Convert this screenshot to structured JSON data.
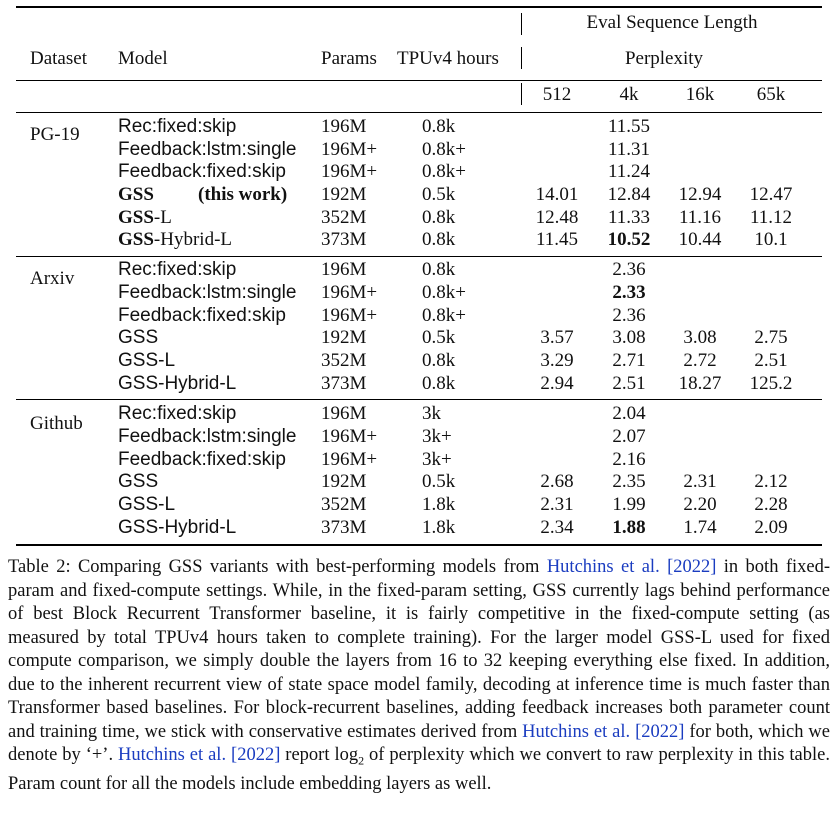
{
  "header": {
    "eval_group": "Eval Sequence Length",
    "dataset": "Dataset",
    "model": "Model",
    "params": "Params",
    "tpu_hours": "TPUv4 hours",
    "perplexity": "Perplexity",
    "lengths": [
      "512",
      "4k",
      "16k",
      "65k"
    ]
  },
  "sections": [
    {
      "dataset": "PG-19",
      "rows": [
        {
          "model": "Rec:fixed:skip",
          "params": "196M",
          "hours": "0.8k",
          "v512": "",
          "v4k": "11.55",
          "v16k": "",
          "v65k": ""
        },
        {
          "model": "Feedback:lstm:single",
          "params": "196M+",
          "hours": "0.8k+",
          "v512": "",
          "v4k": "11.31",
          "v16k": "",
          "v65k": ""
        },
        {
          "model": "Feedback:fixed:skip",
          "params": "196M+",
          "hours": "0.8k+",
          "v512": "",
          "v4k": "11.24",
          "v16k": "",
          "v65k": ""
        },
        {
          "model": "GSS",
          "model_note": "(this work)",
          "params": "192M",
          "hours": "0.5k",
          "v512": "14.01",
          "v4k": "12.84",
          "v16k": "12.94",
          "v65k": "12.47"
        },
        {
          "model": "GSS",
          "model_suffix": "-L",
          "params": "352M",
          "hours": "0.8k",
          "v512": "12.48",
          "v4k": "11.33",
          "v16k": "11.16",
          "v65k": "11.12"
        },
        {
          "model": "GSS",
          "model_suffix": "-Hybrid-L",
          "params": "373M",
          "hours": "0.8k",
          "v512": "11.45",
          "v4k": "10.52",
          "v16k": "10.44",
          "v65k": "10.1"
        }
      ]
    },
    {
      "dataset": "Arxiv",
      "rows": [
        {
          "model": "Rec:fixed:skip",
          "params": "196M",
          "hours": "0.8k",
          "v512": "",
          "v4k": "2.36",
          "v16k": "",
          "v65k": ""
        },
        {
          "model": "Feedback:lstm:single",
          "params": "196M+",
          "hours": "0.8k+",
          "v512": "",
          "v4k": "2.33",
          "v16k": "",
          "v65k": ""
        },
        {
          "model": "Feedback:fixed:skip",
          "params": "196M+",
          "hours": "0.8k+",
          "v512": "",
          "v4k": "2.36",
          "v16k": "",
          "v65k": ""
        },
        {
          "model": "GSS",
          "params": "192M",
          "hours": "0.5k",
          "v512": "3.57",
          "v4k": "3.08",
          "v16k": "3.08",
          "v65k": "2.75"
        },
        {
          "model": "GSS-L",
          "params": "352M",
          "hours": "0.8k",
          "v512": "3.29",
          "v4k": "2.71",
          "v16k": "2.72",
          "v65k": "2.51"
        },
        {
          "model": "GSS-Hybrid-L",
          "params": "373M",
          "hours": "0.8k",
          "v512": "2.94",
          "v4k": "2.51",
          "v16k": "18.27",
          "v65k": "125.2"
        }
      ]
    },
    {
      "dataset": "Github",
      "rows": [
        {
          "model": "Rec:fixed:skip",
          "params": "196M",
          "hours": "3k",
          "v512": "",
          "v4k": "2.04",
          "v16k": "",
          "v65k": ""
        },
        {
          "model": "Feedback:lstm:single",
          "params": "196M+",
          "hours": "3k+",
          "v512": "",
          "v4k": "2.07",
          "v16k": "",
          "v65k": ""
        },
        {
          "model": "Feedback:fixed:skip",
          "params": "196M+",
          "hours": "3k+",
          "v512": "",
          "v4k": "2.16",
          "v16k": "",
          "v65k": ""
        },
        {
          "model": "GSS",
          "params": "192M",
          "hours": "0.5k",
          "v512": "2.68",
          "v4k": "2.35",
          "v16k": "2.31",
          "v65k": "2.12"
        },
        {
          "model": "GSS-L",
          "params": "352M",
          "hours": "1.8k",
          "v512": "2.31",
          "v4k": "1.99",
          "v16k": "2.20",
          "v65k": "2.28"
        },
        {
          "model": "GSS-Hybrid-L",
          "params": "373M",
          "hours": "1.8k",
          "v512": "2.34",
          "v4k": "1.88",
          "v16k": "1.74",
          "v65k": "2.09"
        }
      ]
    }
  ],
  "bold_cells": [
    "PG-19 GSS-Hybrid-L 4k: 10.52",
    "Arxiv Feedback:lstm:single 4k: 2.33",
    "Github GSS-Hybrid-L 4k: 1.88"
  ],
  "caption": {
    "t1": "Table 2: Comparing GSS variants with best-performing models from ",
    "cite_name": "Hutchins et al.",
    "cite_year": "2022",
    "t2": " in both fixed-param and fixed-compute settings. While, in the fixed-param setting, GSS currently lags behind performance of best Block Recurrent Transformer baseline, it is fairly competitive in the fixed-compute setting (as measured by total TPUv4 hours taken to complete training). For the larger model GSS-L used for fixed compute comparison, we simply double the layers from 16 to 32 keeping everything else fixed. In addition, due to the inherent recurrent view of state space model family, decoding at inference time is much faster than Transformer based baselines. For block-recurrent baselines, adding feedback increases both parameter count and training time, we stick with conservative estimates derived from ",
    "t3": " for both, which we denote by ‘+’. ",
    "t4": " report ",
    "log": "log",
    "log_sub": "2",
    "t5": " of perplexity which we convert to raw perplexity in this table. Param count for all the models include embedding layers as well."
  },
  "colors": {
    "citation": "#1a3cc0",
    "text": "#111111"
  }
}
